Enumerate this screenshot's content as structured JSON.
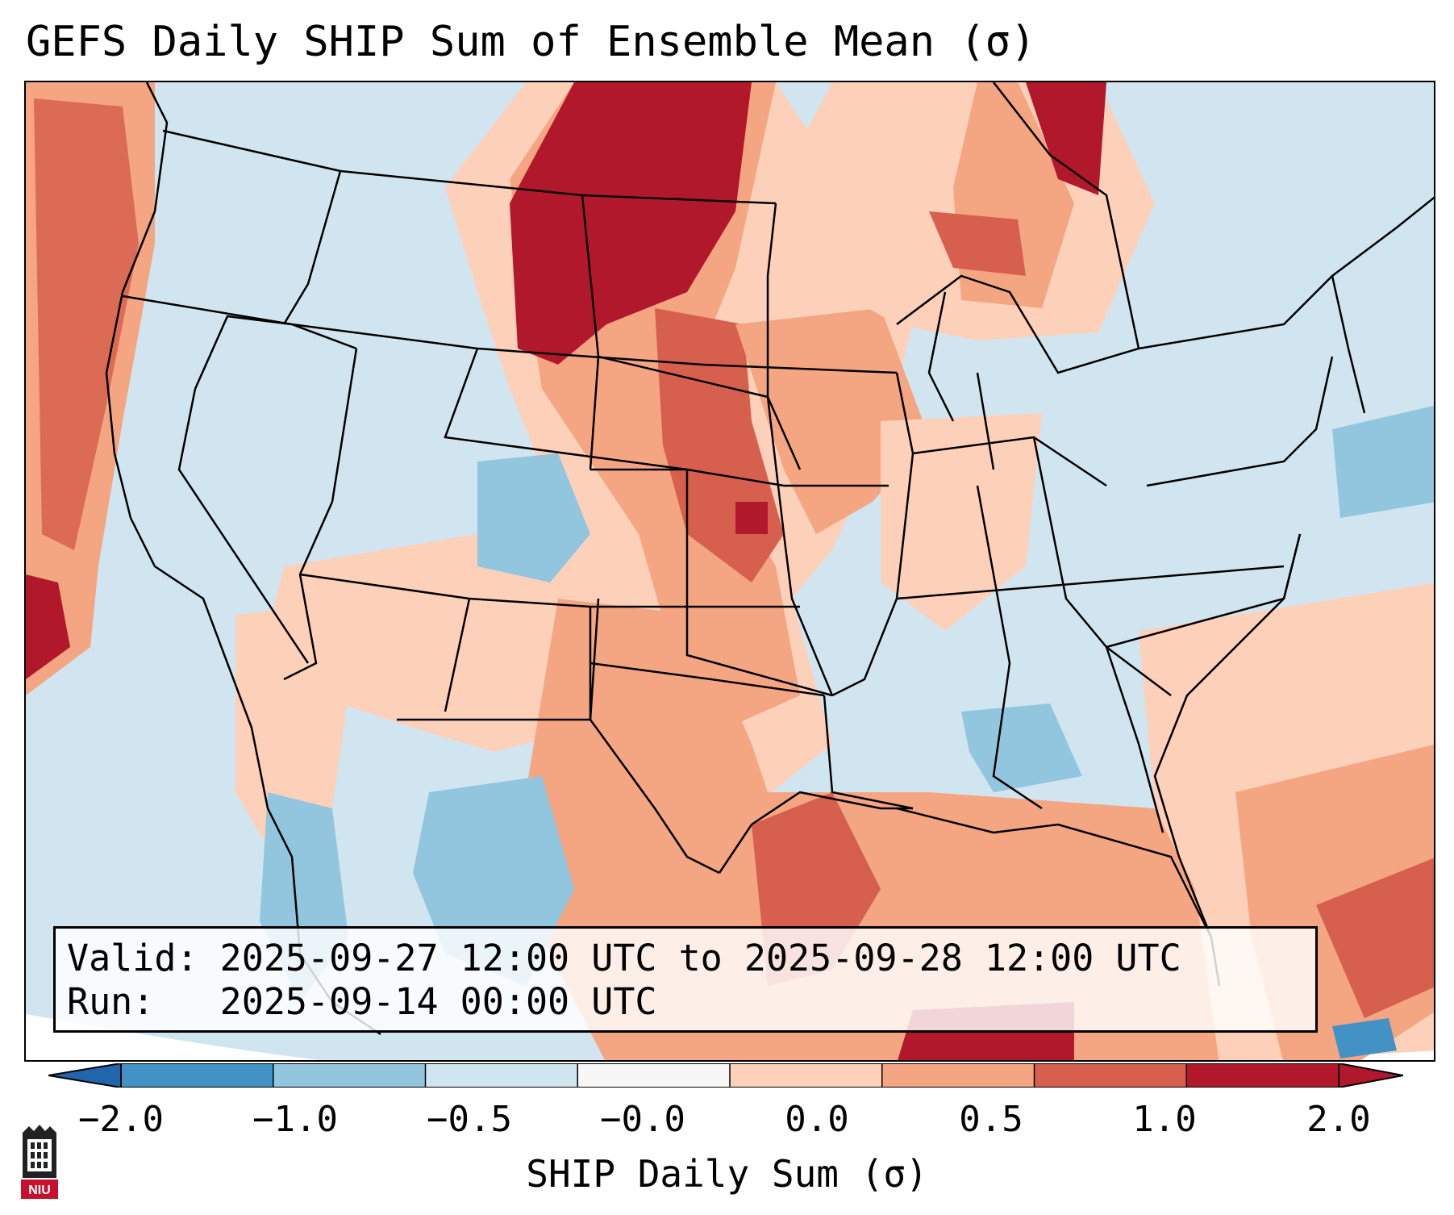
{
  "title": "GEFS Daily SHIP Sum of Ensemble Mean (σ)",
  "info": {
    "valid": "Valid: 2025-09-27 12:00 UTC to 2025-09-28 12:00 UTC",
    "run": "Run:   2025-09-14 00:00 UTC"
  },
  "colorbar": {
    "label": "SHIP Daily Sum (σ)",
    "ticks": [
      "−2.0",
      "−1.0",
      "−0.5",
      "−0.0",
      "0.0",
      "0.5",
      "1.0",
      "2.0"
    ],
    "colors": [
      "#4292c6",
      "#92c5de",
      "#d1e5f0",
      "#f7f7f7",
      "#fdd0b9",
      "#f4a582",
      "#d6604d",
      "#b2182b"
    ],
    "under_color": "#2166ac",
    "over_color": "#b2182b"
  },
  "logo": {
    "text": "NIU",
    "color": "#c8102e"
  }
}
